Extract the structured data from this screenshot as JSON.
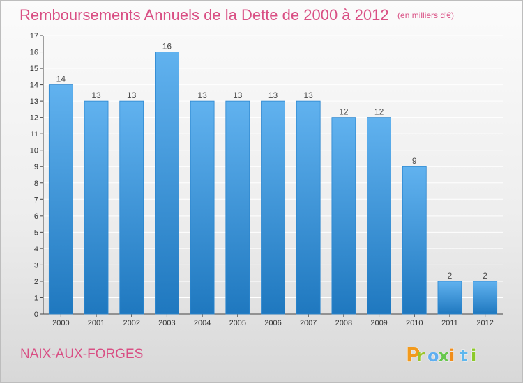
{
  "title": "Remboursements Annuels de la Dette de 2000 à 2012",
  "subtitle": "(en milliers d'€)",
  "commune": "NAIX-AUX-FORGES",
  "brand": {
    "name": "Proxiti",
    "letters": [
      "P",
      "r",
      "o",
      "x",
      "i",
      "t",
      "i"
    ],
    "letter_colors": [
      "#f29a1d",
      "#9ac42d",
      "#5faef0",
      "#66c64d",
      "#f08d1a",
      "#5eb7ee",
      "#8cc92a"
    ]
  },
  "colors": {
    "title": "#d94f84",
    "bar_top": "#61b2ef",
    "bar_bottom": "#1f78bf",
    "bar_edge": "#2b86cf",
    "grid": "#ffffff",
    "axis": "#444444"
  },
  "chart_data": {
    "type": "bar",
    "title": "Remboursements Annuels de la Dette de 2000 à 2012",
    "subtitle": "(en milliers d'€)",
    "categories": [
      "2000",
      "2001",
      "2002",
      "2003",
      "2004",
      "2005",
      "2006",
      "2007",
      "2008",
      "2009",
      "2010",
      "2011",
      "2012"
    ],
    "values": [
      14,
      13,
      13,
      16,
      13,
      13,
      13,
      13,
      12,
      12,
      9,
      2,
      2
    ],
    "ylim": [
      0,
      17
    ],
    "yticks": [
      0,
      1,
      2,
      3,
      4,
      5,
      6,
      7,
      8,
      9,
      10,
      11,
      12,
      13,
      14,
      15,
      16,
      17
    ],
    "grid": true,
    "data_labels": true
  }
}
